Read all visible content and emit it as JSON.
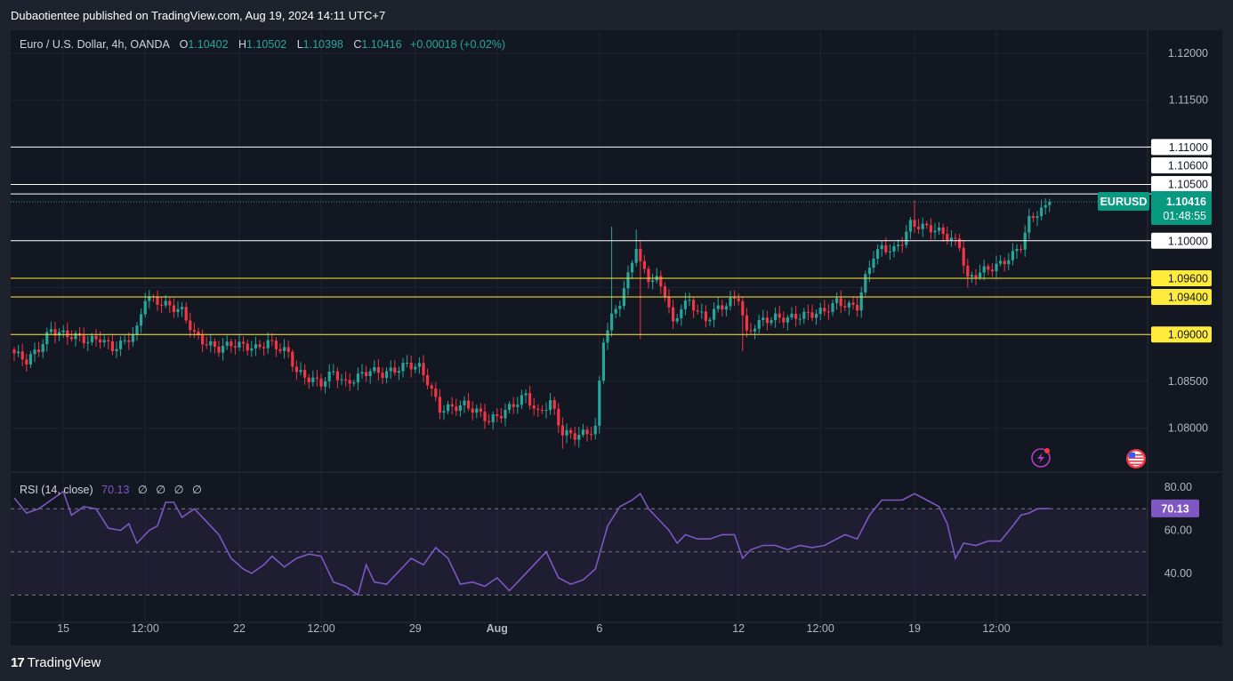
{
  "header": {
    "published_by": "Dubaotientee published on TradingView.com, Aug 19, 2024 14:11 UTC+7"
  },
  "legend": {
    "symbol": "Euro / U.S. Dollar, 4h, OANDA",
    "open_label": "O",
    "open": "1.10402",
    "high_label": "H",
    "high": "1.10502",
    "low_label": "L",
    "low": "1.10398",
    "close_label": "C",
    "close": "1.10416",
    "change": "+0.00018 (+0.02%)"
  },
  "rsi_legend": {
    "name": "RSI (14, close)",
    "value": "70.13",
    "placeholders": [
      "∅",
      "∅",
      "∅",
      "∅"
    ]
  },
  "footer": {
    "logo_mark": "17",
    "logo_text": "TradingView"
  },
  "colors": {
    "up": "#26a69a",
    "down": "#f23645",
    "rsi": "#7e57c2",
    "yellow": "#ffeb3b",
    "white": "#ffffff",
    "badge": "#089981"
  },
  "icons": [
    "lightning-icon",
    "us-flag-icon"
  ],
  "chart_data": [
    {
      "type": "candlestick",
      "title": "Euro / U.S. Dollar, 4h, OANDA",
      "ylim": [
        1.0765,
        1.123
      ],
      "y_ticks": [
        "1.12000",
        "1.11500",
        "1.08500",
        "1.08000"
      ],
      "x_ticks": [
        "15",
        "12:00",
        "22",
        "12:00",
        "29",
        "Aug",
        "6",
        "12",
        "12:00",
        "19",
        "12:00"
      ],
      "x_tick_index": [
        12,
        32,
        55,
        75,
        98,
        118,
        143,
        177,
        197,
        220,
        240
      ],
      "grid": true,
      "horizontal_levels": [
        {
          "price": 1.11,
          "label": "1.11000",
          "color": "white"
        },
        {
          "price": 1.106,
          "label": "1.10600",
          "color": "white"
        },
        {
          "price": 1.105,
          "label": "1.10500",
          "color": "white"
        },
        {
          "price": 1.1,
          "label": "1.10000",
          "color": "white"
        },
        {
          "price": 1.096,
          "label": "1.09600",
          "color": "yellow"
        },
        {
          "price": 1.094,
          "label": "1.09400",
          "color": "yellow"
        },
        {
          "price": 1.09,
          "label": "1.09000",
          "color": "yellow"
        }
      ],
      "last_price": {
        "symbol": "EURUSD",
        "price": 1.10416,
        "label": "1.10416",
        "countdown": "01:48:55"
      },
      "anchors": [
        [
          0,
          1.088
        ],
        [
          3,
          1.0872
        ],
        [
          6,
          1.0885
        ],
        [
          9,
          1.0905
        ],
        [
          12,
          1.09
        ],
        [
          15,
          1.0898
        ],
        [
          18,
          1.0893
        ],
        [
          21,
          1.0896
        ],
        [
          24,
          1.0885
        ],
        [
          27,
          1.0892
        ],
        [
          30,
          1.0905
        ],
        [
          32,
          1.094
        ],
        [
          35,
          1.0935
        ],
        [
          38,
          1.093
        ],
        [
          41,
          1.0925
        ],
        [
          44,
          1.09
        ],
        [
          47,
          1.089
        ],
        [
          50,
          1.0885
        ],
        [
          53,
          1.089
        ],
        [
          56,
          1.0888
        ],
        [
          59,
          1.0885
        ],
        [
          62,
          1.0892
        ],
        [
          65,
          1.0885
        ],
        [
          67,
          1.088
        ],
        [
          69,
          1.086
        ],
        [
          72,
          1.0853
        ],
        [
          75,
          1.0848
        ],
        [
          78,
          1.086
        ],
        [
          81,
          1.0847
        ],
        [
          84,
          1.0855
        ],
        [
          87,
          1.0862
        ],
        [
          90,
          1.0858
        ],
        [
          93,
          1.0862
        ],
        [
          96,
          1.0868
        ],
        [
          99,
          1.0865
        ],
        [
          101,
          1.085
        ],
        [
          104,
          1.082
        ],
        [
          107,
          1.0822
        ],
        [
          110,
          1.0825
        ],
        [
          113,
          1.0818
        ],
        [
          116,
          1.0808
        ],
        [
          119,
          1.0815
        ],
        [
          122,
          1.0825
        ],
        [
          125,
          1.0835
        ],
        [
          128,
          1.0815
        ],
        [
          131,
          1.0828
        ],
        [
          134,
          1.0795
        ],
        [
          137,
          1.0792
        ],
        [
          140,
          1.0795
        ],
        [
          142,
          1.08
        ],
        [
          144,
          1.0895
        ],
        [
          146,
          1.0918
        ],
        [
          148,
          1.0935
        ],
        [
          150,
          1.0962
        ],
        [
          152,
          1.0995
        ],
        [
          153,
          1.0975
        ],
        [
          155,
          1.096
        ],
        [
          157,
          1.0958
        ],
        [
          159,
          1.0945
        ],
        [
          161,
          1.091
        ],
        [
          163,
          1.093
        ],
        [
          165,
          1.0935
        ],
        [
          167,
          1.0925
        ],
        [
          169,
          1.0915
        ],
        [
          171,
          1.0925
        ],
        [
          173,
          1.093
        ],
        [
          175,
          1.0935
        ],
        [
          177,
          1.094
        ],
        [
          179,
          1.09
        ],
        [
          181,
          1.091
        ],
        [
          183,
          1.0915
        ],
        [
          186,
          1.0918
        ],
        [
          189,
          1.0917
        ],
        [
          192,
          1.092
        ],
        [
          195,
          1.0922
        ],
        [
          198,
          1.0925
        ],
        [
          201,
          1.0935
        ],
        [
          204,
          1.093
        ],
        [
          206,
          1.093
        ],
        [
          208,
          1.096
        ],
        [
          210,
          1.0985
        ],
        [
          212,
          1.0992
        ],
        [
          215,
          1.099
        ],
        [
          217,
          1.1
        ],
        [
          219,
          1.1018
        ],
        [
          222,
          1.1015
        ],
        [
          225,
          1.1012
        ],
        [
          228,
          1.1005
        ],
        [
          231,
          1.0995
        ],
        [
          233,
          1.0958
        ],
        [
          235,
          1.0965
        ],
        [
          238,
          1.097
        ],
        [
          241,
          1.0975
        ],
        [
          244,
          1.0985
        ],
        [
          246,
          1.0995
        ],
        [
          248,
          1.1022
        ],
        [
          250,
          1.103
        ],
        [
          252,
          1.1035
        ],
        [
          253,
          1.10416
        ]
      ]
    },
    {
      "type": "line",
      "title": "RSI (14, close)",
      "series": [
        {
          "name": "RSI (14, close)"
        }
      ],
      "ylim": [
        20,
        85
      ],
      "y_ticks": [
        "80.00",
        "60.00",
        "40.00"
      ],
      "band": [
        30,
        70
      ],
      "midline": 50,
      "last_value": {
        "value": 70.13,
        "label": "70.13"
      },
      "values": [
        [
          0,
          75
        ],
        [
          3,
          68
        ],
        [
          6,
          70
        ],
        [
          9,
          74
        ],
        [
          12,
          78
        ],
        [
          14,
          67
        ],
        [
          17,
          71
        ],
        [
          20,
          70
        ],
        [
          23,
          61
        ],
        [
          26,
          60
        ],
        [
          28,
          63
        ],
        [
          30,
          54
        ],
        [
          33,
          60
        ],
        [
          35,
          62
        ],
        [
          37,
          73
        ],
        [
          39,
          73
        ],
        [
          41,
          66
        ],
        [
          44,
          70
        ],
        [
          47,
          64
        ],
        [
          50,
          58
        ],
        [
          53,
          47
        ],
        [
          56,
          42
        ],
        [
          58,
          40
        ],
        [
          61,
          44
        ],
        [
          63,
          48
        ],
        [
          66,
          43
        ],
        [
          69,
          47
        ],
        [
          72,
          49
        ],
        [
          75,
          48
        ],
        [
          78,
          36
        ],
        [
          81,
          34
        ],
        [
          84,
          30
        ],
        [
          86,
          44
        ],
        [
          88,
          36
        ],
        [
          91,
          35
        ],
        [
          94,
          41
        ],
        [
          97,
          47
        ],
        [
          100,
          44
        ],
        [
          103,
          52
        ],
        [
          106,
          47
        ],
        [
          109,
          35
        ],
        [
          112,
          36
        ],
        [
          115,
          34
        ],
        [
          118,
          38
        ],
        [
          121,
          32
        ],
        [
          124,
          38
        ],
        [
          127,
          44
        ],
        [
          130,
          50
        ],
        [
          133,
          38
        ],
        [
          136,
          35
        ],
        [
          139,
          37
        ],
        [
          142,
          42
        ],
        [
          145,
          62
        ],
        [
          148,
          71
        ],
        [
          151,
          74
        ],
        [
          153,
          77
        ],
        [
          155,
          70
        ],
        [
          157,
          66
        ],
        [
          160,
          60
        ],
        [
          162,
          54
        ],
        [
          164,
          58
        ],
        [
          167,
          56
        ],
        [
          170,
          56
        ],
        [
          173,
          58
        ],
        [
          176,
          58
        ],
        [
          178,
          47
        ],
        [
          180,
          51
        ],
        [
          183,
          53
        ],
        [
          186,
          53
        ],
        [
          189,
          51
        ],
        [
          192,
          53
        ],
        [
          195,
          52
        ],
        [
          198,
          53
        ],
        [
          200,
          55
        ],
        [
          203,
          58
        ],
        [
          206,
          56
        ],
        [
          209,
          67
        ],
        [
          212,
          74
        ],
        [
          214,
          74
        ],
        [
          217,
          74
        ],
        [
          220,
          77
        ],
        [
          223,
          74
        ],
        [
          226,
          71
        ],
        [
          228,
          63
        ],
        [
          230,
          47
        ],
        [
          232,
          54
        ],
        [
          235,
          53
        ],
        [
          238,
          55
        ],
        [
          241,
          55
        ],
        [
          244,
          62
        ],
        [
          246,
          67
        ],
        [
          248,
          68
        ],
        [
          250,
          70
        ],
        [
          253,
          70.13
        ]
      ]
    }
  ]
}
